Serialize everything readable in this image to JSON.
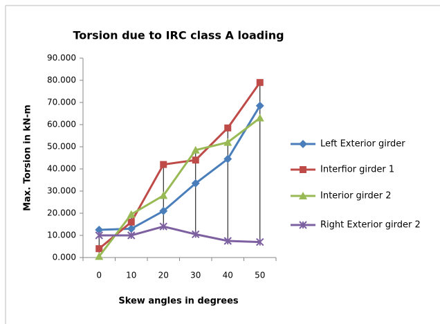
{
  "chart_data": {
    "type": "line",
    "title": "Torsion due to IRC class A loading",
    "x_label": "Skew angles in degrees",
    "y_label": "Max. Torsion in kN-m",
    "categories": [
      0,
      10,
      20,
      30,
      40,
      50
    ],
    "series": [
      {
        "name": "Left Exterior girder",
        "color": "#4a7ebb",
        "marker": "diamond",
        "values": [
          12.5,
          13,
          21,
          33.5,
          44.5,
          68.5
        ]
      },
      {
        "name": "Interfior girder 1",
        "color": "#be4b48",
        "marker": "square",
        "values": [
          4,
          16,
          42,
          44,
          58.5,
          79
        ]
      },
      {
        "name": "Interior girder 2",
        "color": "#98b954",
        "marker": "triangle",
        "values": [
          0.5,
          19.5,
          28,
          48.5,
          52,
          63
        ]
      },
      {
        "name": "Right Exterior girder 2",
        "color": "#7d60a0",
        "marker": "x",
        "values": [
          10,
          10,
          14,
          10.5,
          7.5,
          7
        ]
      }
    ],
    "ylim": [
      0,
      90
    ],
    "yticks": [
      {
        "value": 0,
        "label": "0.000"
      },
      {
        "value": 10,
        "label": "10.000"
      },
      {
        "value": 20,
        "label": "20.000"
      },
      {
        "value": 30,
        "label": "30.000"
      },
      {
        "value": 40,
        "label": "40.000"
      },
      {
        "value": 50,
        "label": "50.000"
      },
      {
        "value": 60,
        "label": "60.000"
      },
      {
        "value": 70,
        "label": "70.000"
      },
      {
        "value": 80,
        "label": "80.000"
      },
      {
        "value": 90,
        "label": "90.000"
      }
    ],
    "legend": "right",
    "grid": false,
    "drop_lines": true
  }
}
